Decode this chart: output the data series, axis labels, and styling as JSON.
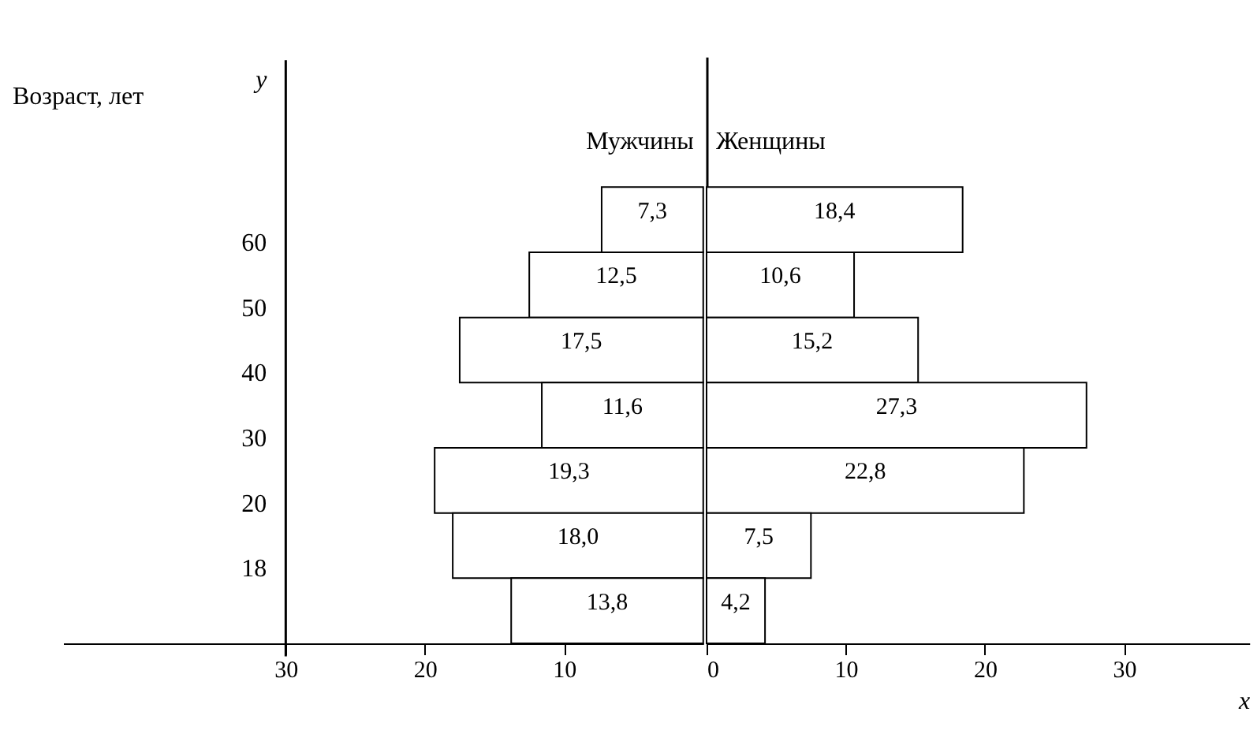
{
  "chart_data": [
    {
      "type": "bar",
      "orientation": "horizontal",
      "categories": [
        null,
        null,
        null,
        null,
        null,
        null,
        null
      ],
      "series": [
        {
          "name": "Мужчины",
          "color": "#ffffff",
          "values": [
            7.3,
            12.5,
            17.5,
            11.6,
            19.3,
            18.0,
            13.8
          ],
          "value_labels": [
            "7,3",
            "12,5",
            "17,5",
            "11,6",
            "19,3",
            "18,0",
            "13,8"
          ]
        }
      ],
      "xlim": [
        46,
        0
      ],
      "xticks": [
        30,
        20,
        10
      ],
      "ylabel": "Возраст, лет",
      "annotations": [
        "y",
        "18",
        "20",
        "30",
        "40",
        "50",
        "60"
      ],
      "ref_lines": [
        {
          "axis": "x",
          "value": 30
        }
      ],
      "legend": false,
      "grid": false
    },
    {
      "type": "bar",
      "orientation": "horizontal",
      "categories": [
        null,
        null,
        null,
        null,
        null,
        null,
        null
      ],
      "series": [
        {
          "name": "Женщины",
          "color": "#ffffff",
          "values": [
            18.4,
            10.6,
            15.2,
            27.3,
            22.8,
            7.5,
            4.2
          ],
          "value_labels": [
            "18,4",
            "10,6",
            "15,2",
            "27,3",
            "22,8",
            "7,5",
            "4,2"
          ]
        }
      ],
      "xlim": [
        0,
        39
      ],
      "xticks": [
        0,
        10,
        20,
        30
      ],
      "xlabel": "x",
      "tick_labels": "x",
      "legend": false,
      "grid": false
    }
  ]
}
